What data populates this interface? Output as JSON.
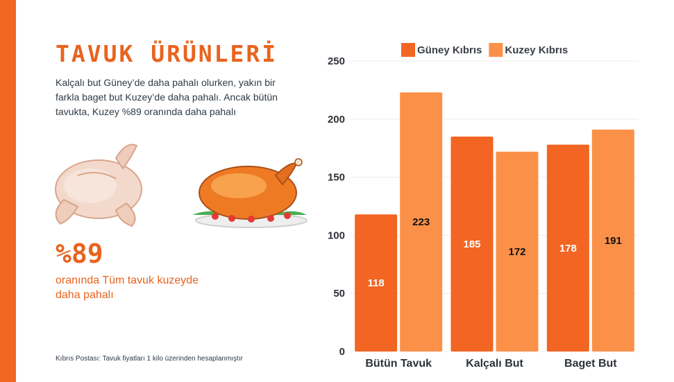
{
  "page": {
    "title": "TAVUK ÜRÜNLERİ",
    "description": "Kalçalı but Güney’de daha pahalı olurken, yakın bir farkla baget but Kuzey’de daha pahalı. Ancak bütün tavukta, Kuzey %89 oranında daha pahalı",
    "highlight_value": "%89",
    "highlight_text": "oranında Tüm tavuk kuzeyde daha pahalı",
    "source": "Kıbrıs Postası: Tavuk fiyatları 1 kilo üzerinden hesaplanmıştır"
  },
  "colors": {
    "accent": "#f26722",
    "title": "#e8641f",
    "series_guney": "#f26522",
    "series_kuzey": "#fb9148"
  },
  "illustrations": [
    "raw-chicken-icon",
    "roast-chicken-icon"
  ],
  "chart_data": {
    "type": "bar",
    "categories": [
      "Bütün Tavuk",
      "Kalçalı But",
      "Baget But"
    ],
    "series": [
      {
        "name": "Güney Kıbrıs",
        "values": [
          118,
          185,
          178
        ],
        "color": "#f26522",
        "label_color": "#ffffff"
      },
      {
        "name": "Kuzey Kıbrıs",
        "values": [
          223,
          172,
          191
        ],
        "color": "#fb9148",
        "label_color": "#111111"
      }
    ],
    "ylim": [
      0,
      250
    ],
    "yticks": [
      0,
      50,
      100,
      150,
      200,
      250
    ],
    "grid": true,
    "legend": "top",
    "data_labels": true
  }
}
